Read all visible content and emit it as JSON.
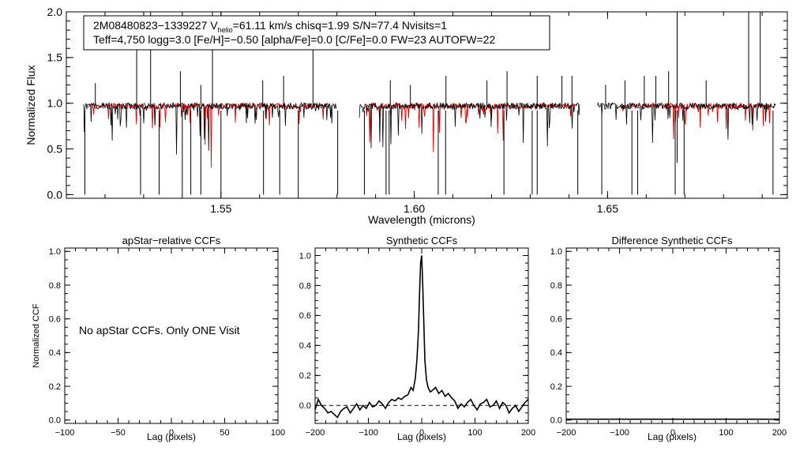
{
  "colors": {
    "observed": "#000000",
    "model": "#dd0000",
    "axes": "#000000",
    "zero_line": "#000000"
  },
  "chart_data": [
    {
      "type": "line",
      "name": "spectrum",
      "info_line1_prefix": "2M08480823−1339227  V",
      "info_line1_sub": "helio",
      "info_line1_suffix": "=61.11 km/s  chisq=1.99  S/N=77.4  Nvisits=1",
      "info_line2": "Teff=4,750 logg=3.0 [Fe/H]=−0.50 [alpha/Fe]=0.0 [C/Fe]=0.0 FW=23 AUTOFW=22",
      "xlabel": "Wavelength (microns)",
      "ylabel": "Normalized Flux",
      "xlim": [
        1.51,
        1.6965
      ],
      "ylim": [
        -0.04,
        2.0
      ],
      "xticks": [
        1.55,
        1.6,
        1.65
      ],
      "xtick_labels": [
        "1.55",
        "1.60",
        "1.65"
      ],
      "yticks": [
        0.0,
        0.5,
        1.0,
        1.5,
        2.0
      ],
      "ytick_labels": [
        "0.0",
        "0.5",
        "1.0",
        "1.5",
        "2.0"
      ],
      "detector_chips": [
        [
          1.5145,
          1.58
        ],
        [
          1.5858,
          1.6428
        ],
        [
          1.6474,
          1.6935
        ]
      ],
      "model_chips": [
        [
          1.5158,
          1.578
        ],
        [
          1.5875,
          1.6415
        ],
        [
          1.6535,
          1.6925
        ]
      ],
      "continuum": 0.97,
      "emission_spikes": [
        [
          1.5175,
          1.22
        ],
        [
          1.5282,
          1.6
        ],
        [
          1.5318,
          2.05
        ],
        [
          1.5395,
          1.35
        ],
        [
          1.5448,
          1.2
        ],
        [
          1.5478,
          2.05
        ],
        [
          1.5608,
          1.25
        ],
        [
          1.5662,
          1.3
        ],
        [
          1.5738,
          1.6
        ],
        [
          1.5938,
          1.25
        ],
        [
          1.599,
          1.2
        ],
        [
          1.6082,
          1.3
        ],
        [
          1.6188,
          1.25
        ],
        [
          1.624,
          1.35
        ],
        [
          1.6318,
          1.3
        ],
        [
          1.6382,
          1.3
        ],
        [
          1.6408,
          1.3
        ],
        [
          1.6495,
          1.2
        ],
        [
          1.6545,
          1.25
        ],
        [
          1.6595,
          1.3
        ],
        [
          1.6625,
          1.3
        ],
        [
          1.6658,
          1.35
        ],
        [
          1.668,
          2.05
        ],
        [
          1.6755,
          1.25
        ],
        [
          1.6865,
          2.05
        ],
        [
          1.6895,
          2.05
        ]
      ],
      "absorption_dips": [
        [
          1.5148,
          0.0
        ],
        [
          1.5292,
          0.0
        ],
        [
          1.534,
          0.0
        ],
        [
          1.54,
          0.0
        ],
        [
          1.5422,
          0.0
        ],
        [
          1.5448,
          0.0
        ],
        [
          1.55,
          0.0
        ],
        [
          1.561,
          0.0
        ],
        [
          1.5652,
          0.0
        ],
        [
          1.57,
          0.0
        ],
        [
          1.5802,
          0.0
        ],
        [
          1.5871,
          0.0
        ],
        [
          1.5927,
          0.0
        ],
        [
          1.5935,
          0.0
        ],
        [
          1.6062,
          0.0
        ],
        [
          1.6081,
          0.0
        ],
        [
          1.6232,
          0.0
        ],
        [
          1.6305,
          0.0
        ],
        [
          1.6318,
          0.0
        ],
        [
          1.6423,
          0.0
        ],
        [
          1.6485,
          0.0
        ],
        [
          1.6563,
          0.0
        ],
        [
          1.6578,
          0.0
        ],
        [
          1.6675,
          0.0
        ],
        [
          1.6698,
          0.0
        ],
        [
          1.668,
          0.35
        ],
        [
          1.6928,
          0.0
        ]
      ]
    },
    {
      "type": "line",
      "name": "apstar-ccf",
      "title": "apStar−relative CCFs",
      "xlabel": "Lag (pixels)",
      "ylabel": "Normalized CCF",
      "xlim": [
        -100,
        100
      ],
      "ylim": [
        -0.02,
        1.02
      ],
      "xticks": [
        -100,
        -50,
        0,
        50,
        100
      ],
      "xtick_labels": [
        "−100",
        "−50",
        "0",
        "50",
        "100"
      ],
      "yticks": [
        0.0,
        0.2,
        0.4,
        0.6,
        0.8,
        1.0
      ],
      "ytick_labels": [
        "0.0",
        "0.2",
        "0.4",
        "0.6",
        "0.8",
        "1.0"
      ],
      "annotation": "No apStar CCFs.  Only ONE Visit",
      "series": []
    },
    {
      "type": "line",
      "name": "synthetic-ccf",
      "title": "Synthetic CCFs",
      "xlabel": "Lag (pixels)",
      "xlim": [
        -200,
        200
      ],
      "ylim": [
        -0.12,
        1.05
      ],
      "xticks": [
        -200,
        -100,
        0,
        100,
        200
      ],
      "xtick_labels": [
        "−200",
        "−100",
        "0",
        "100",
        "200"
      ],
      "yticks": [
        0.0,
        0.2,
        0.4,
        0.6,
        0.8,
        1.0
      ],
      "ytick_labels": [
        "0.0",
        "0.2",
        "0.4",
        "0.6",
        "0.8",
        "1.0"
      ],
      "zero_line": 0.0,
      "series": [
        {
          "name": "CCF",
          "x": [
            -200,
            -194,
            -188,
            -182,
            -176,
            -170,
            -164,
            -158,
            -152,
            -146,
            -140,
            -134,
            -128,
            -122,
            -116,
            -110,
            -104,
            -98,
            -92,
            -86,
            -80,
            -74,
            -68,
            -62,
            -56,
            -50,
            -44,
            -38,
            -32,
            -26,
            -20,
            -16,
            -12,
            -9,
            -6,
            -4,
            -2,
            0,
            2,
            4,
            6,
            9,
            12,
            16,
            20,
            26,
            32,
            38,
            44,
            50,
            56,
            62,
            68,
            74,
            80,
            86,
            92,
            98,
            104,
            110,
            116,
            122,
            128,
            134,
            140,
            146,
            152,
            158,
            164,
            170,
            176,
            182,
            188,
            194,
            200
          ],
          "y": [
            -0.03,
            0.04,
            0.0,
            -0.02,
            -0.05,
            -0.04,
            -0.06,
            -0.08,
            -0.04,
            -0.02,
            -0.01,
            -0.05,
            -0.02,
            0.01,
            -0.03,
            0.0,
            -0.02,
            0.02,
            -0.01,
            0.0,
            0.03,
            0.01,
            -0.02,
            0.02,
            0.04,
            0.03,
            0.05,
            0.04,
            0.06,
            0.07,
            0.12,
            0.1,
            0.18,
            0.3,
            0.5,
            0.75,
            0.95,
            1.0,
            0.8,
            0.55,
            0.3,
            0.17,
            0.12,
            0.09,
            0.1,
            0.12,
            0.08,
            0.1,
            0.06,
            0.08,
            0.05,
            0.03,
            -0.02,
            0.01,
            -0.01,
            0.02,
            0.04,
            0.0,
            -0.03,
            0.01,
            0.02,
            0.04,
            -0.01,
            0.0,
            0.03,
            -0.02,
            0.02,
            0.0,
            -0.05,
            -0.02,
            0.0,
            -0.04,
            -0.01,
            0.02,
            0.04
          ]
        }
      ]
    },
    {
      "type": "line",
      "name": "difference-ccf",
      "title": "Difference Synthetic CCFs",
      "xlabel": "Lag (pixels)",
      "xlim": [
        -200,
        200
      ],
      "ylim": [
        -0.02,
        1.02
      ],
      "xticks": [
        -200,
        -100,
        0,
        100,
        200
      ],
      "xtick_labels": [
        "−200",
        "−100",
        "0",
        "100",
        "200"
      ],
      "yticks": [
        0.0,
        0.2,
        0.4,
        0.6,
        0.8,
        1.0
      ],
      "ytick_labels": [
        "0.0",
        "0.2",
        "0.4",
        "0.6",
        "0.8",
        "1.0"
      ],
      "series": [
        {
          "name": "difference",
          "x": [
            -200,
            200
          ],
          "y": [
            0.0,
            0.0
          ]
        }
      ]
    }
  ]
}
